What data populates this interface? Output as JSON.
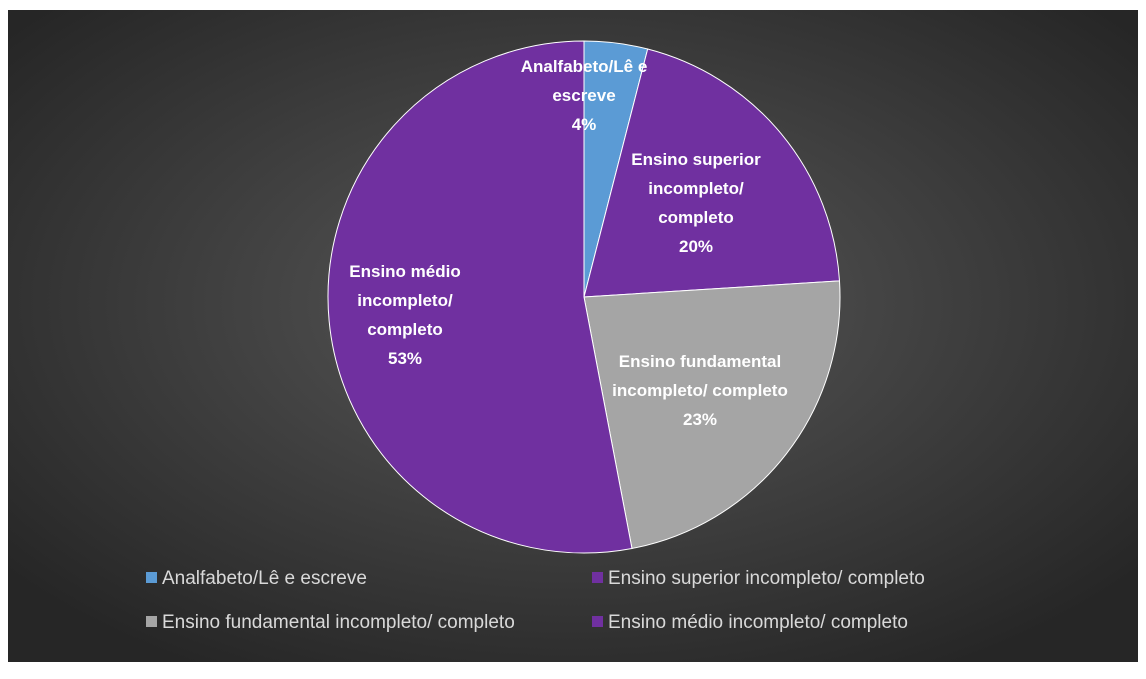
{
  "chart_data": {
    "type": "pie",
    "categories": [
      "Analfabeto/Lê e escreve",
      "Ensino superior incompleto/ completo",
      "Ensino fundamental incompleto/ completo",
      "Ensino médio incompleto/ completo"
    ],
    "values": [
      4,
      20,
      23,
      53
    ],
    "value_labels": [
      "4%",
      "20%",
      "23%",
      "53%"
    ],
    "colors": [
      "#5b9bd5",
      "#7030a0",
      "#a5a5a5",
      "#7030a0"
    ],
    "legend": "bottom"
  }
}
